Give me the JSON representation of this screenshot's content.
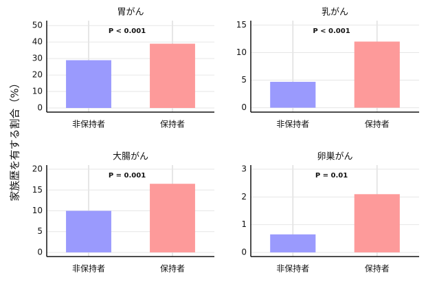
{
  "ylabel": "家族歴を有する割合（%）",
  "chart_data": [
    {
      "type": "bar",
      "title": "胃がん",
      "annotation": "P < 0.001",
      "categories": [
        "非保持者",
        "保持者"
      ],
      "values": [
        29,
        39
      ],
      "colors": [
        "#9a9afd",
        "#fd9a9a"
      ],
      "ylim": [
        -2.5,
        53
      ],
      "yticks": [
        0,
        10,
        20,
        30,
        40,
        50
      ],
      "grid": true
    },
    {
      "type": "bar",
      "title": "乳がん",
      "annotation": "P < 0.001",
      "categories": [
        "非保持者",
        "保持者"
      ],
      "values": [
        4.7,
        12.0
      ],
      "colors": [
        "#9a9afd",
        "#fd9a9a"
      ],
      "ylim": [
        -0.8,
        15.8
      ],
      "yticks": [
        0,
        5,
        10,
        15
      ],
      "grid": true
    },
    {
      "type": "bar",
      "title": "大腸がん",
      "annotation": "P = 0.001",
      "categories": [
        "非保持者",
        "保持者"
      ],
      "values": [
        10,
        16.5
      ],
      "colors": [
        "#9a9afd",
        "#fd9a9a"
      ],
      "ylim": [
        -1,
        21
      ],
      "yticks": [
        0,
        5,
        10,
        15,
        20
      ],
      "grid": true
    },
    {
      "type": "bar",
      "title": "卵巣がん",
      "annotation": "P = 0.01",
      "categories": [
        "非保持者",
        "保持者"
      ],
      "values": [
        0.65,
        2.1
      ],
      "colors": [
        "#9a9afd",
        "#fd9a9a"
      ],
      "ylim": [
        -0.15,
        3.15
      ],
      "yticks": [
        0,
        1,
        2,
        3
      ],
      "grid": true
    }
  ]
}
